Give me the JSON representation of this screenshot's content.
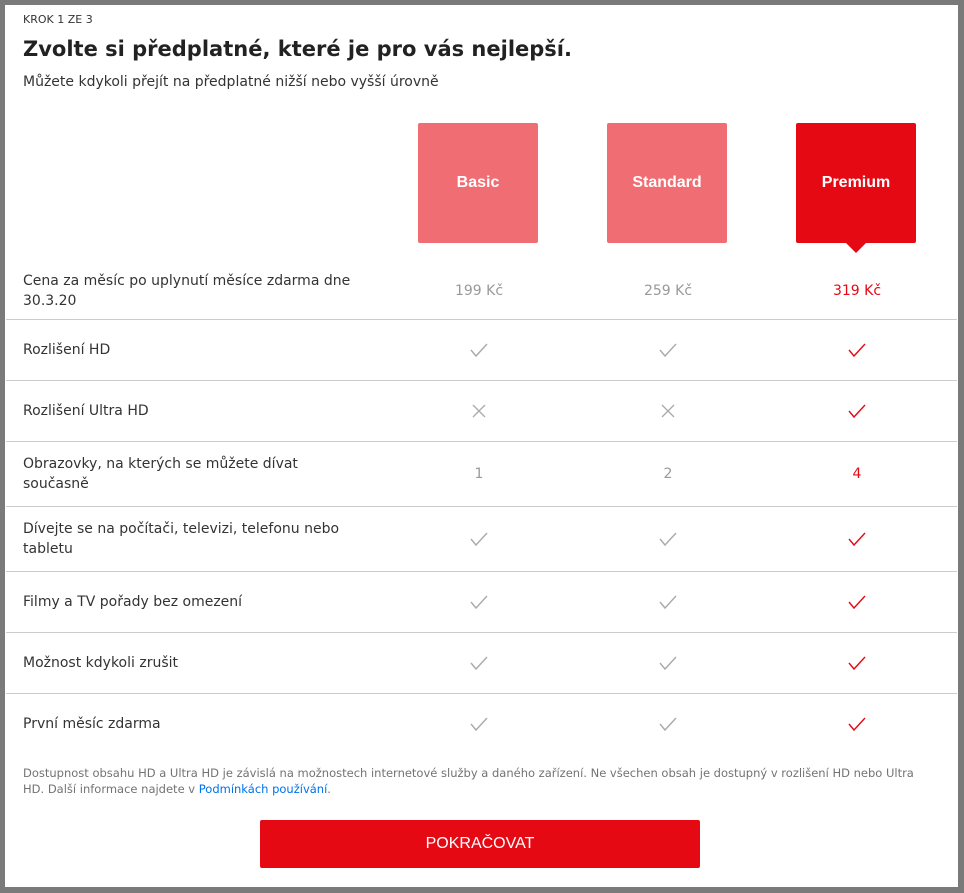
{
  "header": {
    "step_prefix": "KROK",
    "step_current": "1",
    "step_of": "ZE",
    "step_total": "3",
    "title": "Zvolte si předplatné, které je pro vás nejlepší.",
    "subtitle": "Můžete kdykoli přejít na předplatné nižší nebo vyšší úrovně"
  },
  "plans": [
    {
      "name": "Basic",
      "selected": false
    },
    {
      "name": "Standard",
      "selected": false
    },
    {
      "name": "Premium",
      "selected": true
    }
  ],
  "colors": {
    "accent": "#e50914",
    "unselected_plan": "#f06e73",
    "muted": "#999999",
    "link": "#0071eb"
  },
  "rows": [
    {
      "label": "Cena za měsíc po uplynutí měsíce zdarma dne 30.3.20",
      "values": [
        "199 Kč",
        "259 Kč",
        "319 Kč"
      ]
    },
    {
      "label": "Rozlišení HD",
      "values": [
        "check",
        "check",
        "check"
      ]
    },
    {
      "label": "Rozlišení Ultra HD",
      "values": [
        "cross",
        "cross",
        "check"
      ]
    },
    {
      "label": "Obrazovky, na kterých se můžete dívat současně",
      "values": [
        "1",
        "2",
        "4"
      ]
    },
    {
      "label": "Dívejte se na počítači, televizi, telefonu nebo tabletu",
      "values": [
        "check",
        "check",
        "check"
      ]
    },
    {
      "label": "Filmy a TV pořady bez omezení",
      "values": [
        "check",
        "check",
        "check"
      ]
    },
    {
      "label": "Možnost kdykoli zrušit",
      "values": [
        "check",
        "check",
        "check"
      ]
    },
    {
      "label": "První měsíc zdarma",
      "values": [
        "check",
        "check",
        "check"
      ]
    }
  ],
  "footer": {
    "note": "Dostupnost obsahu HD a Ultra HD je závislá na možnostech internetové služby a daného zařízení. Ne všechen obsah je dostupný v rozlišení HD nebo Ultra HD. Další informace najdete v ",
    "link": "Podmínkách používání",
    "note_end": ".",
    "continue": "POKRAČOVAT"
  }
}
